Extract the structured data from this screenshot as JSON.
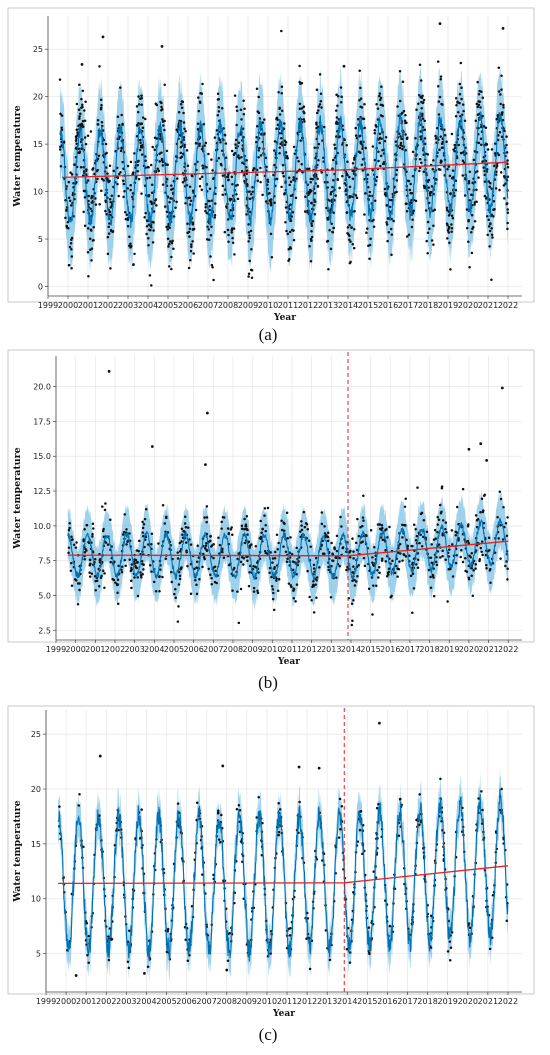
{
  "colors": {
    "observed": "#111111",
    "forecast_line": "#0072b2",
    "uncertainty_band": "#7ec3e6",
    "trend": "#e32222",
    "changepoint": "#e32222",
    "grid": "#e6e6e6"
  },
  "chart_data": [
    {
      "type": "line",
      "caption": "(a)",
      "xlabel": "Year",
      "ylabel": "Water temperature",
      "xlim": [
        1999.0,
        2022.7
      ],
      "ylim": [
        -1,
        28.5
      ],
      "yticks": [
        0,
        5,
        10,
        15,
        20,
        25
      ],
      "ytick_labels": [
        "0",
        "5",
        "10",
        "15",
        "20",
        "25"
      ],
      "xticks": [
        1999,
        2000,
        2001,
        2002,
        2003,
        2004,
        2005,
        2006,
        2007,
        2008,
        2009,
        2010,
        2011,
        2012,
        2013,
        2014,
        2015,
        2016,
        2017,
        2018,
        2019,
        2020,
        2021,
        2022
      ],
      "xtick_labels": [
        "1999",
        "2000",
        "2001",
        "2002",
        "2003",
        "2004",
        "2005",
        "2006",
        "2007",
        "2008",
        "2009",
        "2010",
        "2011",
        "2012",
        "2013",
        "2014",
        "2015",
        "2016",
        "2017",
        "2018",
        "2019",
        "2020",
        "2021",
        "2022"
      ],
      "grid": true,
      "changepoints": [],
      "trend": [
        {
          "x": 1999.7,
          "y": 11.5
        },
        {
          "x": 2013.9,
          "y": 12.3
        },
        {
          "x": 2022.0,
          "y": 13.1
        }
      ],
      "seasonal": {
        "start": 1999.6,
        "end": 2022.0,
        "amplitude": 4.9,
        "band_half_width": 4.6,
        "peak_phase": 0.62,
        "noise": 2.7
      },
      "observations": {
        "count": 1900,
        "seed": 11
      },
      "outliers": [
        {
          "x": 2001.75,
          "y": 26.3
        },
        {
          "x": 2004.7,
          "y": 25.3
        },
        {
          "x": 2018.6,
          "y": 27.7
        },
        {
          "x": 2021.75,
          "y": 27.2
        },
        {
          "x": 2000.7,
          "y": 23.4
        },
        {
          "x": 2013.8,
          "y": 23.2
        }
      ]
    },
    {
      "type": "line",
      "caption": "(b)",
      "xlabel": "Year",
      "ylabel": "Water temperature",
      "xlim": [
        1999.0,
        2022.7
      ],
      "ylim": [
        1.8,
        22.2
      ],
      "yticks": [
        2.5,
        5.0,
        7.5,
        10.0,
        12.5,
        15.0,
        17.5,
        20.0
      ],
      "ytick_labels": [
        "2.5",
        "5.0",
        "7.5",
        "10.0",
        "12.5",
        "15.0",
        "17.5",
        "20.0"
      ],
      "xticks": [
        1999,
        2000,
        2001,
        2002,
        2003,
        2004,
        2005,
        2006,
        2007,
        2008,
        2009,
        2010,
        2011,
        2012,
        2013,
        2014,
        2015,
        2016,
        2017,
        2018,
        2019,
        2020,
        2021,
        2022
      ],
      "xtick_labels": [
        "1999",
        "2000",
        "2001",
        "2002",
        "2003",
        "2004",
        "2005",
        "2006",
        "2007",
        "2008",
        "2009",
        "2010",
        "2011",
        "2012",
        "2013",
        "2014",
        "2015",
        "2016",
        "2017",
        "2018",
        "2019",
        "2020",
        "2021",
        "2022"
      ],
      "grid": true,
      "changepoints": [
        2013.85
      ],
      "trend": [
        {
          "x": 1999.6,
          "y": 7.9
        },
        {
          "x": 2013.85,
          "y": 7.85
        },
        {
          "x": 2022.0,
          "y": 8.9
        }
      ],
      "seasonal": {
        "start": 1999.6,
        "end": 2022.0,
        "amplitude": 1.5,
        "band_half_width": 1.9,
        "peak_phase": 0.6,
        "noise": 1.2
      },
      "observations": {
        "count": 900,
        "seed": 23
      },
      "outliers": [
        {
          "x": 2001.7,
          "y": 21.1
        },
        {
          "x": 2006.7,
          "y": 18.1
        },
        {
          "x": 2003.9,
          "y": 15.7
        },
        {
          "x": 2021.7,
          "y": 19.9
        },
        {
          "x": 2020.6,
          "y": 15.9
        },
        {
          "x": 2020.0,
          "y": 15.5
        },
        {
          "x": 2006.6,
          "y": 14.4
        },
        {
          "x": 2020.9,
          "y": 14.7
        }
      ]
    },
    {
      "type": "line",
      "caption": "(c)",
      "xlabel": "Year",
      "ylabel": "Water temperature",
      "xlim": [
        1999.0,
        2022.7
      ],
      "ylim": [
        1.5,
        27.2
      ],
      "yticks": [
        5,
        10,
        15,
        20,
        25
      ],
      "ytick_labels": [
        "5",
        "10",
        "15",
        "20",
        "25"
      ],
      "xticks": [
        1999,
        2000,
        2001,
        2002,
        2003,
        2004,
        2005,
        2006,
        2007,
        2008,
        2009,
        2010,
        2011,
        2012,
        2013,
        2014,
        2015,
        2016,
        2017,
        2018,
        2019,
        2020,
        2021,
        2022
      ],
      "xtick_labels": [
        "1999",
        "2000",
        "2001",
        "2002",
        "2003",
        "2004",
        "2005",
        "2006",
        "2007",
        "2008",
        "2009",
        "2010",
        "2011",
        "2012",
        "2013",
        "2014",
        "2015",
        "2016",
        "2017",
        "2018",
        "2019",
        "2020",
        "2021",
        "2022"
      ],
      "grid": true,
      "changepoints": [
        2013.85
      ],
      "trend": [
        {
          "x": 1999.6,
          "y": 11.4
        },
        {
          "x": 2013.85,
          "y": 11.45
        },
        {
          "x": 2022.0,
          "y": 13.0
        }
      ],
      "seasonal": {
        "start": 1999.6,
        "end": 2022.0,
        "amplitude": 6.1,
        "band_half_width": 1.8,
        "peak_phase": 0.62,
        "noise": 1.0
      },
      "observations": {
        "count": 620,
        "seed": 37
      },
      "outliers": [
        {
          "x": 2001.7,
          "y": 23.0
        },
        {
          "x": 2015.6,
          "y": 26.0
        },
        {
          "x": 2007.8,
          "y": 22.1
        },
        {
          "x": 2011.6,
          "y": 22.0
        },
        {
          "x": 2012.6,
          "y": 21.9
        },
        {
          "x": 2000.5,
          "y": 3.0
        },
        {
          "x": 2003.9,
          "y": 3.2
        },
        {
          "x": 2008.0,
          "y": 3.5
        }
      ]
    }
  ]
}
